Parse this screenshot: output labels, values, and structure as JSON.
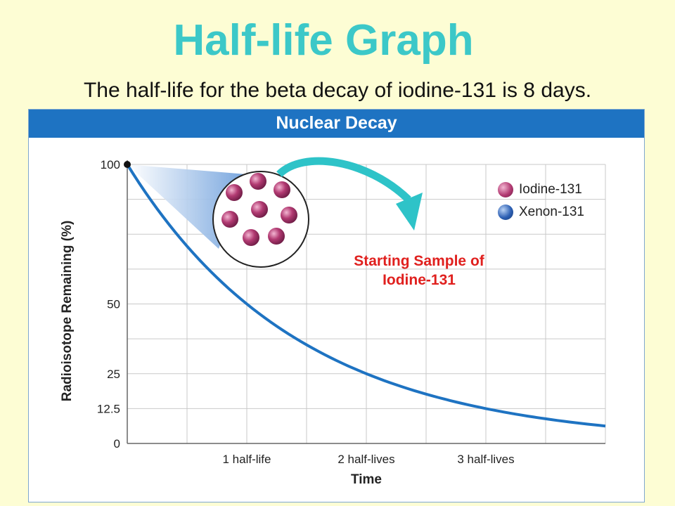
{
  "slide": {
    "title": "Half-life Graph",
    "subtitle": "The half-life for the beta decay of iodine-131 is 8 days."
  },
  "colors": {
    "title": "#3cc8c8",
    "header": "#1e73c2",
    "curve": "#1e73c2",
    "annotation": "#e0201e",
    "arrow": "#2ec3c8",
    "iodine": "#b23a72",
    "xenon": "#2c5fb3"
  },
  "chart_data": {
    "type": "line",
    "title": "Nuclear Decay",
    "xlabel": "Time",
    "ylabel": "Radioisotope Remaining (%)",
    "x_unit": "half-lives",
    "xlim": [
      0,
      4
    ],
    "ylim": [
      0,
      100
    ],
    "grid": true,
    "x_ticks": [
      {
        "value": 1,
        "label": "1 half-life"
      },
      {
        "value": 2,
        "label": "2 half-lives"
      },
      {
        "value": 3,
        "label": "3 half-lives"
      }
    ],
    "y_ticks": [
      {
        "value": 100,
        "label": "100"
      },
      {
        "value": 50,
        "label": "50"
      },
      {
        "value": 25,
        "label": "25"
      },
      {
        "value": 12.5,
        "label": "12.5"
      },
      {
        "value": 0,
        "label": "0"
      }
    ],
    "series": [
      {
        "x": [
          0,
          0.5,
          1,
          1.5,
          2,
          2.5,
          3,
          3.5,
          4
        ],
        "values": [
          100,
          70.7,
          50,
          35.4,
          25,
          17.7,
          12.5,
          8.8,
          6.25
        ]
      }
    ],
    "start_point": {
      "x": 0,
      "y": 100
    },
    "legend": {
      "placement": "top-right",
      "items": [
        {
          "label": "Iodine-131",
          "color": "#b23a72"
        },
        {
          "label": "Xenon-131",
          "color": "#2c5fb3"
        }
      ]
    },
    "annotation": {
      "line1": "Starting Sample of",
      "line2": "Iodine-131"
    },
    "sample_atoms": {
      "iodine_count": 8,
      "xenon_count": 0
    }
  }
}
